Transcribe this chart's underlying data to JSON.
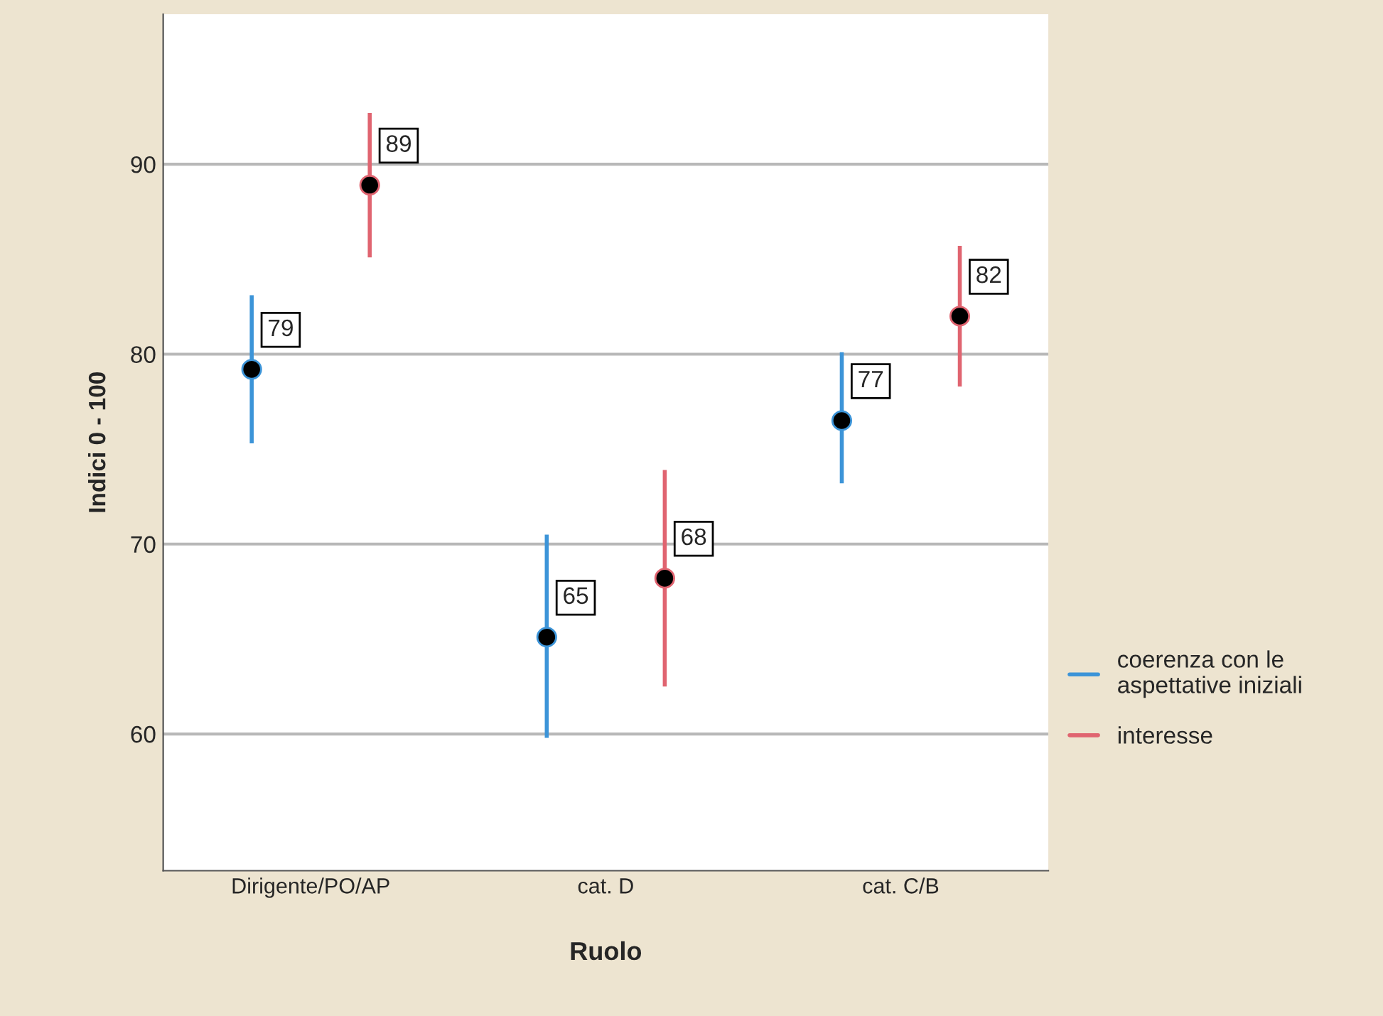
{
  "chart_data": {
    "type": "scatter",
    "xlabel": "Ruolo",
    "ylabel": "Indici 0 - 100",
    "categories": [
      "Dirigente/PO/AP",
      "cat. D",
      "cat. C/B"
    ],
    "series": [
      {
        "name": "coerenza con le\naspettative iniziali",
        "color": "#3c94d8",
        "values": [
          79.2,
          65.1,
          76.5
        ],
        "errors": [
          [
            75.3,
            83.1
          ],
          [
            59.8,
            70.5
          ],
          [
            73.2,
            80.1
          ]
        ],
        "value_labels": [
          "79",
          "65",
          "77"
        ]
      },
      {
        "name": "interesse",
        "color": "#e06470",
        "values": [
          88.9,
          68.2,
          82.0
        ],
        "errors": [
          [
            85.1,
            92.7
          ],
          [
            62.5,
            73.9
          ],
          [
            78.3,
            85.7
          ]
        ],
        "value_labels": [
          "89",
          "68",
          "82"
        ]
      }
    ],
    "ylim": [
      52.8,
      97.9
    ],
    "yticks": [
      60,
      70,
      80,
      90
    ],
    "grid": "y",
    "legend": "right",
    "marker": "circle"
  }
}
